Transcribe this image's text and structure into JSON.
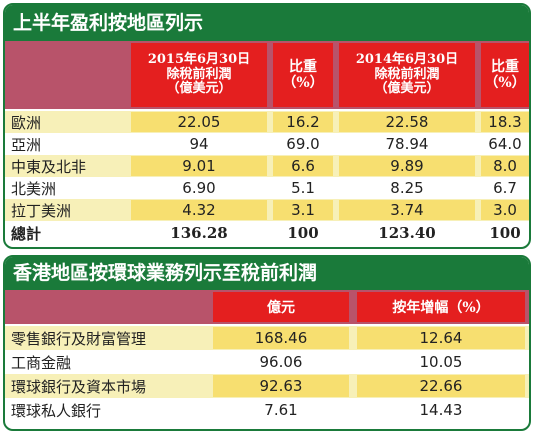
{
  "table1": {
    "title": "上半年盈利按地區列示",
    "headers": {
      "col1": [
        "2015年6月30日",
        "除稅前利潤",
        "（億美元）"
      ],
      "col2": [
        "比重",
        "（%）"
      ],
      "col3": [
        "2014年6月30日",
        "除稅前利潤",
        "（億美元）"
      ],
      "col4": [
        "比重",
        "（%）"
      ]
    },
    "rows": [
      {
        "label": "歐洲",
        "v2015": "22.05",
        "s2015": "16.2",
        "v2014": "22.58",
        "s2014": "18.3"
      },
      {
        "label": "亞洲",
        "v2015": "94",
        "s2015": "69.0",
        "v2014": "78.94",
        "s2014": "64.0"
      },
      {
        "label": "中東及北非",
        "v2015": "9.01",
        "s2015": "6.6",
        "v2014": "9.89",
        "s2014": "8.0"
      },
      {
        "label": "北美洲",
        "v2015": "6.90",
        "s2015": "5.1",
        "v2014": "8.25",
        "s2014": "6.7"
      },
      {
        "label": "拉丁美洲",
        "v2015": "4.32",
        "s2015": "3.1",
        "v2014": "3.74",
        "s2014": "3.0"
      },
      {
        "label": "總計",
        "v2015": "136.28",
        "s2015": "100",
        "v2014": "123.40",
        "s2014": "100"
      }
    ]
  },
  "table2": {
    "title": "香港地區按環球業務列示至稅前利潤",
    "headers": {
      "col1": "億元",
      "col2": "按年增幅（%）"
    },
    "rows": [
      {
        "label": "零售銀行及財富管理",
        "value": "168.46",
        "growth": "12.64"
      },
      {
        "label": "工商金融",
        "value": "96.06",
        "growth": "10.05"
      },
      {
        "label": "環球銀行及資本市場",
        "value": "92.63",
        "growth": "22.66"
      },
      {
        "label": "環球私人銀行",
        "value": "7.61",
        "growth": "14.43"
      }
    ]
  },
  "colors": {
    "title_green": "#1a7a3a",
    "header_red": "#e41f1f",
    "header_band": "#b8536a",
    "row_alt": "#f7f0b8",
    "cell_alt": "#f7df70"
  }
}
